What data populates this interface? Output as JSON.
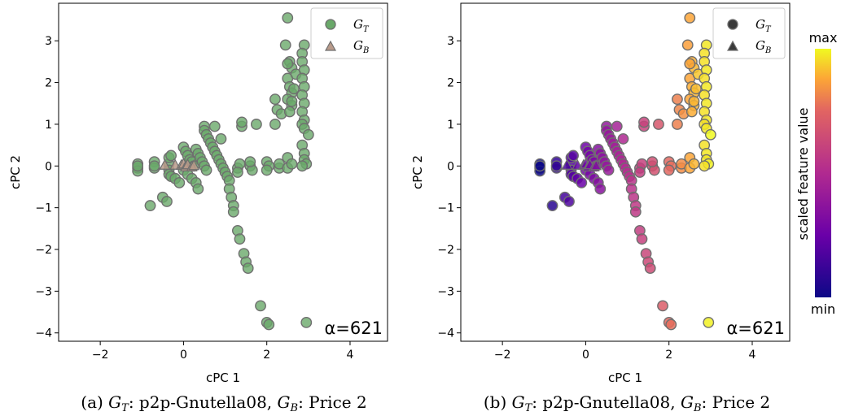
{
  "colors": {
    "panel_a_point": "#6aa96a",
    "panel_a_triangle": "#b89a8a",
    "edge": "#6f6f6f",
    "colormap": "plasma"
  },
  "colorbar": {
    "label": "scaled feature value",
    "max_label": "max",
    "min_label": "min"
  },
  "panels": [
    {
      "caption": "(a) G_T: p2p-Gnutella08, G_B: Price 2",
      "caption_parts": {
        "prefix": "(a) ",
        "gt": "G",
        "gt_sub": "T",
        "mid": ": p2p-Gnutella08, ",
        "gb": "G",
        "gb_sub": "B",
        "suffix": ": Price 2"
      },
      "alpha_label": "α=621",
      "legend": [
        {
          "label": "G",
          "sub": "T",
          "marker": "circle"
        },
        {
          "label": "G",
          "sub": "B",
          "marker": "triangle"
        }
      ]
    },
    {
      "caption": "(b) G_T: p2p-Gnutella08, G_B: Price 2",
      "caption_parts": {
        "prefix": "(b) ",
        "gt": "G",
        "gt_sub": "T",
        "mid": ": p2p-Gnutella08, ",
        "gb": "G",
        "gb_sub": "B",
        "suffix": ": Price 2"
      },
      "alpha_label": "α=621",
      "legend": [
        {
          "label": "G",
          "sub": "T",
          "marker": "circle"
        },
        {
          "label": "G",
          "sub": "B",
          "marker": "triangle"
        }
      ]
    }
  ],
  "chart_data": [
    {
      "type": "scatter",
      "xlabel": "cPC 1",
      "ylabel": "cPC 2",
      "xlim": [
        -3.0,
        4.9
      ],
      "ylim": [
        -4.2,
        3.9
      ],
      "xticks": [
        -2,
        0,
        2,
        4
      ],
      "yticks": [
        -4,
        -3,
        -2,
        -1,
        0,
        1,
        2,
        3
      ],
      "grid": false,
      "legend_position": "top-right",
      "series": [
        {
          "name": "G_T",
          "marker": "circle",
          "points": [
            [
              -1.1,
              -0.05
            ],
            [
              -1.1,
              0.05
            ],
            [
              -1.1,
              -0.12
            ],
            [
              -1.1,
              0.0
            ],
            [
              -0.7,
              0.1
            ],
            [
              -0.7,
              -0.05
            ],
            [
              -0.7,
              0.0
            ],
            [
              -0.35,
              0.05
            ],
            [
              -0.35,
              -0.1
            ],
            [
              -0.35,
              0.2
            ],
            [
              -0.35,
              -0.2
            ],
            [
              -0.3,
              0.25
            ],
            [
              -0.3,
              -0.25
            ],
            [
              -0.2,
              -0.3
            ],
            [
              -0.5,
              -0.75
            ],
            [
              -0.4,
              -0.85
            ],
            [
              -0.8,
              -0.95
            ],
            [
              0.0,
              0.45
            ],
            [
              0.05,
              0.35
            ],
            [
              0.1,
              0.25
            ],
            [
              0.15,
              0.15
            ],
            [
              0.2,
              0.1
            ],
            [
              0.25,
              0.0
            ],
            [
              0.0,
              -0.1
            ],
            [
              0.1,
              -0.2
            ],
            [
              0.2,
              -0.3
            ],
            [
              0.3,
              -0.4
            ],
            [
              0.35,
              -0.55
            ],
            [
              -0.1,
              -0.4
            ],
            [
              0.3,
              0.4
            ],
            [
              0.35,
              0.3
            ],
            [
              0.4,
              0.2
            ],
            [
              0.45,
              0.1
            ],
            [
              0.5,
              0.0
            ],
            [
              0.55,
              -0.1
            ],
            [
              0.5,
              0.95
            ],
            [
              0.5,
              0.85
            ],
            [
              0.55,
              0.75
            ],
            [
              0.6,
              0.65
            ],
            [
              0.65,
              0.55
            ],
            [
              0.7,
              0.45
            ],
            [
              0.75,
              0.35
            ],
            [
              0.8,
              0.25
            ],
            [
              0.85,
              0.15
            ],
            [
              0.9,
              0.05
            ],
            [
              0.95,
              -0.05
            ],
            [
              1.0,
              -0.15
            ],
            [
              1.05,
              -0.25
            ],
            [
              1.1,
              -0.35
            ],
            [
              1.1,
              -0.55
            ],
            [
              1.15,
              -0.75
            ],
            [
              1.2,
              -0.95
            ],
            [
              1.2,
              -1.1
            ],
            [
              1.3,
              -1.55
            ],
            [
              1.35,
              -1.75
            ],
            [
              1.45,
              -2.1
            ],
            [
              1.5,
              -2.3
            ],
            [
              1.55,
              -2.45
            ],
            [
              1.85,
              -3.35
            ],
            [
              2.0,
              -3.75
            ],
            [
              2.05,
              -3.8
            ],
            [
              2.95,
              -3.75
            ],
            [
              0.75,
              0.95
            ],
            [
              0.9,
              0.65
            ],
            [
              1.4,
              0.95
            ],
            [
              1.4,
              1.05
            ],
            [
              1.75,
              1.0
            ],
            [
              1.3,
              -0.05
            ],
            [
              1.35,
              0.05
            ],
            [
              1.3,
              -0.15
            ],
            [
              1.6,
              0.0
            ],
            [
              1.65,
              -0.1
            ],
            [
              1.6,
              0.1
            ],
            [
              2.0,
              0.1
            ],
            [
              2.05,
              0.0
            ],
            [
              2.0,
              -0.1
            ],
            [
              2.2,
              1.0
            ],
            [
              2.25,
              1.35
            ],
            [
              2.2,
              1.6
            ],
            [
              2.35,
              1.25
            ],
            [
              2.3,
              -0.05
            ],
            [
              2.3,
              0.05
            ],
            [
              2.5,
              3.55
            ],
            [
              2.45,
              2.9
            ],
            [
              2.55,
              2.5
            ],
            [
              2.6,
              2.35
            ],
            [
              2.5,
              2.1
            ],
            [
              2.55,
              1.9
            ],
            [
              2.6,
              1.75
            ],
            [
              2.5,
              1.6
            ],
            [
              2.6,
              1.45
            ],
            [
              2.55,
              1.3
            ],
            [
              2.6,
              1.55
            ],
            [
              2.65,
              1.85
            ],
            [
              2.7,
              2.2
            ],
            [
              2.5,
              2.45
            ],
            [
              2.9,
              2.9
            ],
            [
              2.85,
              2.7
            ],
            [
              2.85,
              2.5
            ],
            [
              2.9,
              2.3
            ],
            [
              2.85,
              2.1
            ],
            [
              2.9,
              1.9
            ],
            [
              2.85,
              1.7
            ],
            [
              2.9,
              1.5
            ],
            [
              2.85,
              1.3
            ],
            [
              2.9,
              1.1
            ],
            [
              2.85,
              1.0
            ],
            [
              2.9,
              0.9
            ],
            [
              3.0,
              0.75
            ],
            [
              2.85,
              0.5
            ],
            [
              2.9,
              0.3
            ],
            [
              2.9,
              0.15
            ],
            [
              2.95,
              0.05
            ],
            [
              2.85,
              0.0
            ],
            [
              2.5,
              0.2
            ],
            [
              2.5,
              -0.05
            ],
            [
              2.6,
              0.05
            ]
          ]
        },
        {
          "name": "G_B",
          "marker": "triangle",
          "points": [
            [
              -0.45,
              0.02
            ],
            [
              -0.2,
              0.02
            ],
            [
              -0.05,
              0.02
            ],
            [
              0.0,
              0.05
            ],
            [
              0.05,
              -0.02
            ],
            [
              0.1,
              0.03
            ],
            [
              0.2,
              -0.02
            ],
            [
              0.25,
              0.01
            ]
          ]
        }
      ]
    },
    {
      "type": "scatter",
      "xlabel": "cPC 1",
      "ylabel": "cPC 2",
      "xlim": [
        -3.0,
        4.9
      ],
      "ylim": [
        -4.2,
        3.9
      ],
      "xticks": [
        -2,
        0,
        2,
        4
      ],
      "yticks": [
        -4,
        -3,
        -2,
        -1,
        0,
        1,
        2,
        3
      ],
      "grid": false,
      "legend_position": "top-right",
      "color_encoding": "scaled feature value (plasma, min to max)",
      "series": [
        {
          "name": "G_T",
          "marker": "circle",
          "points": [
            [
              -1.1,
              -0.05
            ],
            [
              -1.1,
              0.05
            ],
            [
              -1.1,
              -0.12
            ],
            [
              -1.1,
              0.0
            ],
            [
              -0.7,
              0.1
            ],
            [
              -0.7,
              -0.05
            ],
            [
              -0.7,
              0.0
            ],
            [
              -0.35,
              0.05
            ],
            [
              -0.35,
              -0.1
            ],
            [
              -0.35,
              0.2
            ],
            [
              -0.35,
              -0.2
            ],
            [
              -0.3,
              0.25
            ],
            [
              -0.3,
              -0.25
            ],
            [
              -0.2,
              -0.3
            ],
            [
              -0.5,
              -0.75
            ],
            [
              -0.4,
              -0.85
            ],
            [
              -0.8,
              -0.95
            ],
            [
              0.0,
              0.45
            ],
            [
              0.05,
              0.35
            ],
            [
              0.1,
              0.25
            ],
            [
              0.15,
              0.15
            ],
            [
              0.2,
              0.1
            ],
            [
              0.25,
              0.0
            ],
            [
              0.0,
              -0.1
            ],
            [
              0.1,
              -0.2
            ],
            [
              0.2,
              -0.3
            ],
            [
              0.3,
              -0.4
            ],
            [
              0.35,
              -0.55
            ],
            [
              -0.1,
              -0.4
            ],
            [
              0.3,
              0.4
            ],
            [
              0.35,
              0.3
            ],
            [
              0.4,
              0.2
            ],
            [
              0.45,
              0.1
            ],
            [
              0.5,
              0.0
            ],
            [
              0.55,
              -0.1
            ],
            [
              0.5,
              0.95
            ],
            [
              0.5,
              0.85
            ],
            [
              0.55,
              0.75
            ],
            [
              0.6,
              0.65
            ],
            [
              0.65,
              0.55
            ],
            [
              0.7,
              0.45
            ],
            [
              0.75,
              0.35
            ],
            [
              0.8,
              0.25
            ],
            [
              0.85,
              0.15
            ],
            [
              0.9,
              0.05
            ],
            [
              0.95,
              -0.05
            ],
            [
              1.0,
              -0.15
            ],
            [
              1.05,
              -0.25
            ],
            [
              1.1,
              -0.35
            ],
            [
              1.1,
              -0.55
            ],
            [
              1.15,
              -0.75
            ],
            [
              1.2,
              -0.95
            ],
            [
              1.2,
              -1.1
            ],
            [
              1.3,
              -1.55
            ],
            [
              1.35,
              -1.75
            ],
            [
              1.45,
              -2.1
            ],
            [
              1.5,
              -2.3
            ],
            [
              1.55,
              -2.45
            ],
            [
              1.85,
              -3.35
            ],
            [
              2.0,
              -3.75
            ],
            [
              2.05,
              -3.8
            ],
            [
              2.95,
              -3.75
            ],
            [
              0.75,
              0.95
            ],
            [
              0.9,
              0.65
            ],
            [
              1.4,
              0.95
            ],
            [
              1.4,
              1.05
            ],
            [
              1.75,
              1.0
            ],
            [
              1.3,
              -0.05
            ],
            [
              1.35,
              0.05
            ],
            [
              1.3,
              -0.15
            ],
            [
              1.6,
              0.0
            ],
            [
              1.65,
              -0.1
            ],
            [
              1.6,
              0.1
            ],
            [
              2.0,
              0.1
            ],
            [
              2.05,
              0.0
            ],
            [
              2.0,
              -0.1
            ],
            [
              2.2,
              1.0
            ],
            [
              2.25,
              1.35
            ],
            [
              2.2,
              1.6
            ],
            [
              2.35,
              1.25
            ],
            [
              2.3,
              -0.05
            ],
            [
              2.3,
              0.05
            ],
            [
              2.5,
              3.55
            ],
            [
              2.45,
              2.9
            ],
            [
              2.55,
              2.5
            ],
            [
              2.6,
              2.35
            ],
            [
              2.5,
              2.1
            ],
            [
              2.55,
              1.9
            ],
            [
              2.6,
              1.75
            ],
            [
              2.5,
              1.6
            ],
            [
              2.6,
              1.45
            ],
            [
              2.55,
              1.3
            ],
            [
              2.6,
              1.55
            ],
            [
              2.65,
              1.85
            ],
            [
              2.7,
              2.2
            ],
            [
              2.5,
              2.45
            ],
            [
              2.9,
              2.9
            ],
            [
              2.85,
              2.7
            ],
            [
              2.85,
              2.5
            ],
            [
              2.9,
              2.3
            ],
            [
              2.85,
              2.1
            ],
            [
              2.9,
              1.9
            ],
            [
              2.85,
              1.7
            ],
            [
              2.9,
              1.5
            ],
            [
              2.85,
              1.3
            ],
            [
              2.9,
              1.1
            ],
            [
              2.85,
              1.0
            ],
            [
              2.9,
              0.9
            ],
            [
              3.0,
              0.75
            ],
            [
              2.85,
              0.5
            ],
            [
              2.9,
              0.3
            ],
            [
              2.9,
              0.15
            ],
            [
              2.95,
              0.05
            ],
            [
              2.85,
              0.0
            ],
            [
              2.5,
              0.2
            ],
            [
              2.5,
              -0.05
            ],
            [
              2.6,
              0.05
            ]
          ]
        },
        {
          "name": "G_B",
          "marker": "triangle",
          "points": [
            [
              -0.45,
              0.02
            ],
            [
              -0.2,
              0.02
            ],
            [
              -0.05,
              0.02
            ],
            [
              0.0,
              0.05
            ],
            [
              0.05,
              -0.02
            ],
            [
              0.1,
              0.03
            ],
            [
              0.2,
              -0.02
            ],
            [
              0.25,
              0.01
            ]
          ]
        }
      ]
    }
  ]
}
